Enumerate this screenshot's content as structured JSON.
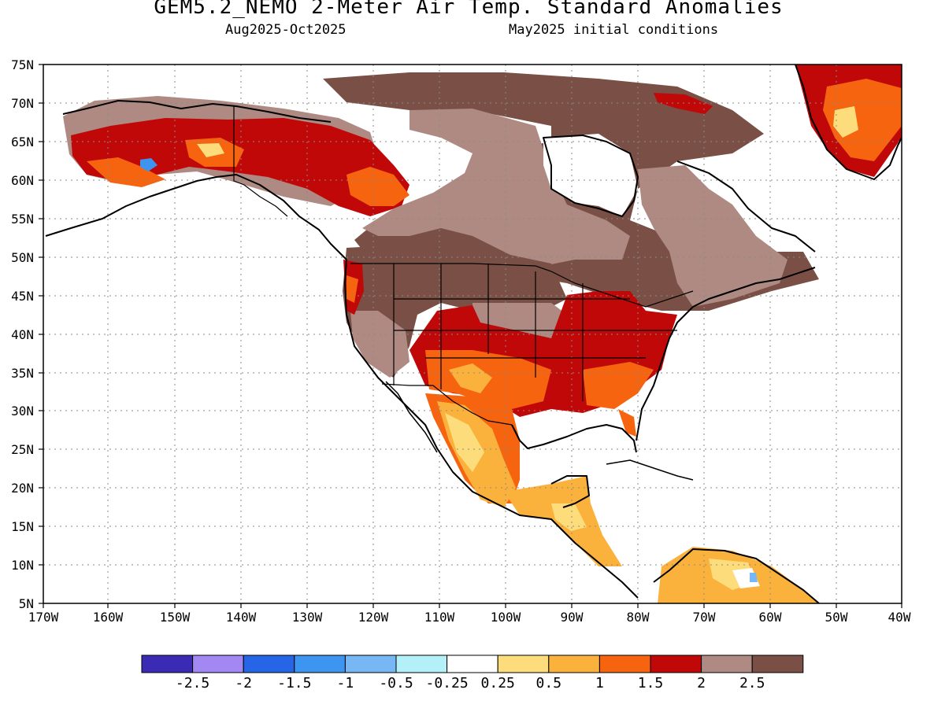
{
  "header": {
    "title": "GEM5.2_NEMO 2-Meter Air Temp. Standard Anomalies",
    "period": "Aug2025-Oct2025",
    "initial_conditions": "May2025 initial conditions"
  },
  "map": {
    "lon_ticks": [
      "170W",
      "160W",
      "150W",
      "140W",
      "130W",
      "120W",
      "110W",
      "100W",
      "90W",
      "80W",
      "70W",
      "60W",
      "50W",
      "40W"
    ],
    "lat_ticks": [
      "5N",
      "10N",
      "15N",
      "20N",
      "25N",
      "30N",
      "35N",
      "40N",
      "45N",
      "50N",
      "55N",
      "60N",
      "65N",
      "70N",
      "75N"
    ]
  },
  "colorbar": {
    "colors": [
      "#3b2ab4",
      "#a388f4",
      "#2565e6",
      "#3d95f0",
      "#77b7f4",
      "#b3f0f8",
      "#ffffff",
      "#fddc7c",
      "#fbb23c",
      "#f66410",
      "#c00808",
      "#ae8a82",
      "#7a4f45"
    ],
    "labels": [
      "-2.5",
      "-2",
      "-1.5",
      "-1",
      "-0.5",
      "-0.25",
      "0.25",
      "0.5",
      "1",
      "1.5",
      "2",
      "2.5"
    ]
  }
}
